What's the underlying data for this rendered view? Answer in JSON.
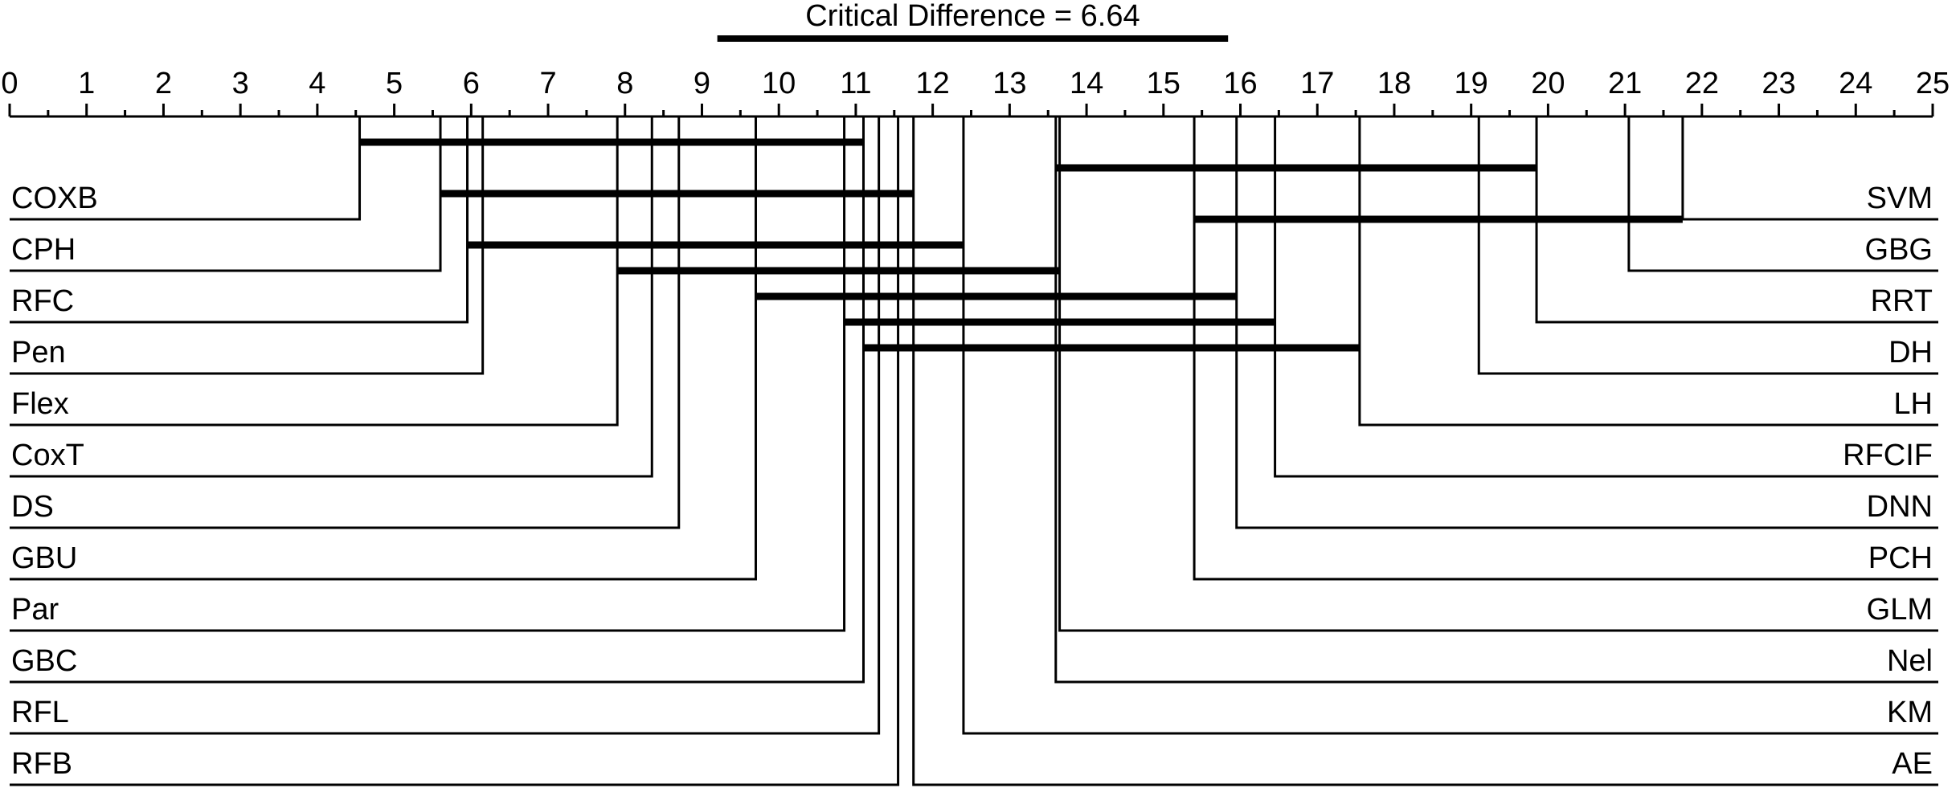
{
  "chart_data": {
    "type": "critical-difference-diagram",
    "axis": {
      "min": 0,
      "max": 25,
      "ticks": [
        0,
        1,
        2,
        3,
        4,
        5,
        6,
        7,
        8,
        9,
        10,
        11,
        12,
        13,
        14,
        15,
        16,
        17,
        18,
        19,
        20,
        21,
        22,
        23,
        24,
        25
      ]
    },
    "critical_difference": {
      "label": "Critical Difference = 6.64",
      "value": 6.64,
      "start": 9.2
    },
    "left_methods": [
      {
        "name": "COXB",
        "rank": 4.55
      },
      {
        "name": "CPH",
        "rank": 5.6
      },
      {
        "name": "RFC",
        "rank": 5.95
      },
      {
        "name": "Pen",
        "rank": 6.15
      },
      {
        "name": "Flex",
        "rank": 7.9
      },
      {
        "name": "CoxT",
        "rank": 8.35
      },
      {
        "name": "DS",
        "rank": 8.7
      },
      {
        "name": "GBU",
        "rank": 9.7
      },
      {
        "name": "Par",
        "rank": 10.85
      },
      {
        "name": "GBC",
        "rank": 11.1
      },
      {
        "name": "RFL",
        "rank": 11.3
      },
      {
        "name": "RFB",
        "rank": 11.55
      }
    ],
    "right_methods": [
      {
        "name": "SVM",
        "rank": 21.75
      },
      {
        "name": "GBG",
        "rank": 21.05
      },
      {
        "name": "RRT",
        "rank": 19.85
      },
      {
        "name": "DH",
        "rank": 19.1
      },
      {
        "name": "LH",
        "rank": 17.55
      },
      {
        "name": "RFCIF",
        "rank": 16.45
      },
      {
        "name": "DNN",
        "rank": 15.95
      },
      {
        "name": "PCH",
        "rank": 15.4
      },
      {
        "name": "GLM",
        "rank": 13.65
      },
      {
        "name": "Nel",
        "rank": 13.6
      },
      {
        "name": "KM",
        "rank": 12.4
      },
      {
        "name": "AE",
        "rank": 11.75
      }
    ],
    "groups": [
      {
        "from": 4.55,
        "to": 11.1
      },
      {
        "from": 13.6,
        "to": 19.85
      },
      {
        "from": 5.6,
        "to": 11.75
      },
      {
        "from": 15.4,
        "to": 21.75
      },
      {
        "from": 5.95,
        "to": 12.4
      },
      {
        "from": 7.9,
        "to": 13.65
      },
      {
        "from": 9.7,
        "to": 15.95
      },
      {
        "from": 10.85,
        "to": 16.45
      },
      {
        "from": 11.1,
        "to": 17.55
      }
    ]
  }
}
